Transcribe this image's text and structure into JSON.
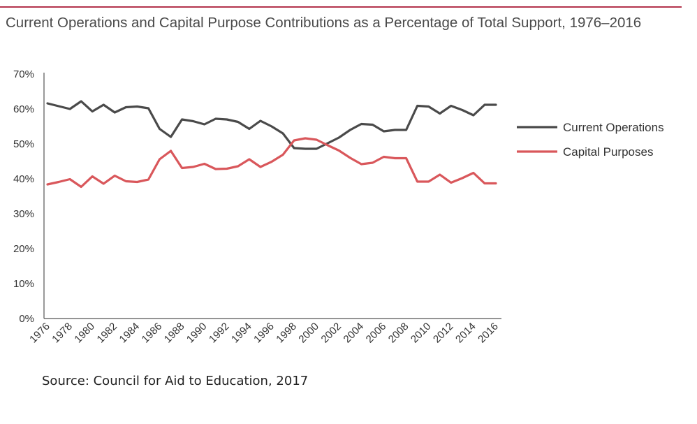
{
  "chart_data": {
    "type": "line",
    "title": "Current Operations and Capital Purpose Contributions as a Percentage of Total Support, 1976–2016",
    "xlabel": "",
    "ylabel": "",
    "x": [
      1976,
      1977,
      1978,
      1979,
      1980,
      1981,
      1982,
      1983,
      1984,
      1985,
      1986,
      1987,
      1988,
      1989,
      1990,
      1991,
      1992,
      1993,
      1994,
      1995,
      1996,
      1997,
      1998,
      1999,
      2000,
      2001,
      2002,
      2003,
      2004,
      2005,
      2006,
      2007,
      2008,
      2009,
      2010,
      2011,
      2012,
      2013,
      2014,
      2015,
      2016
    ],
    "x_tick_labels": [
      "1976",
      "1978",
      "1980",
      "1982",
      "1984",
      "1986",
      "1988",
      "1990",
      "1992",
      "1994",
      "1996",
      "1998",
      "2000",
      "2002",
      "2004",
      "2006",
      "2008",
      "2010",
      "2012",
      "2014",
      "2016"
    ],
    "y_tick_labels": [
      "0%",
      "10%",
      "20%",
      "30%",
      "40%",
      "50%",
      "60%",
      "70%"
    ],
    "ylim": [
      0,
      70
    ],
    "y_unit": "%",
    "grid": false,
    "legend_position": "right",
    "series": [
      {
        "name": "Current Operations",
        "color": "#4a4a4a",
        "values": [
          61.6,
          60.8,
          60.0,
          62.2,
          59.3,
          61.2,
          59.0,
          60.5,
          60.7,
          60.2,
          54.3,
          52.0,
          57.0,
          56.5,
          55.6,
          57.2,
          57.0,
          56.3,
          54.3,
          56.6,
          55.0,
          53.0,
          48.8,
          48.6,
          48.6,
          50.2,
          51.8,
          54.0,
          55.7,
          55.5,
          53.6,
          54.0,
          54.0,
          60.9,
          60.7,
          58.7,
          60.9,
          59.7,
          58.2,
          61.2,
          61.2
        ]
      },
      {
        "name": "Capital Purposes",
        "color": "#d9575b",
        "values": [
          38.4,
          39.1,
          39.9,
          37.7,
          40.7,
          38.6,
          40.9,
          39.3,
          39.1,
          39.8,
          45.6,
          48.0,
          43.1,
          43.4,
          44.3,
          42.8,
          42.9,
          43.6,
          45.6,
          43.4,
          44.9,
          46.9,
          51.0,
          51.6,
          51.2,
          49.6,
          48.1,
          46.0,
          44.2,
          44.6,
          46.3,
          45.9,
          45.9,
          39.2,
          39.2,
          41.2,
          38.9,
          40.2,
          41.7,
          38.7,
          38.7
        ]
      }
    ]
  },
  "source_note": "Source: Council for Aid to Education, 2017"
}
